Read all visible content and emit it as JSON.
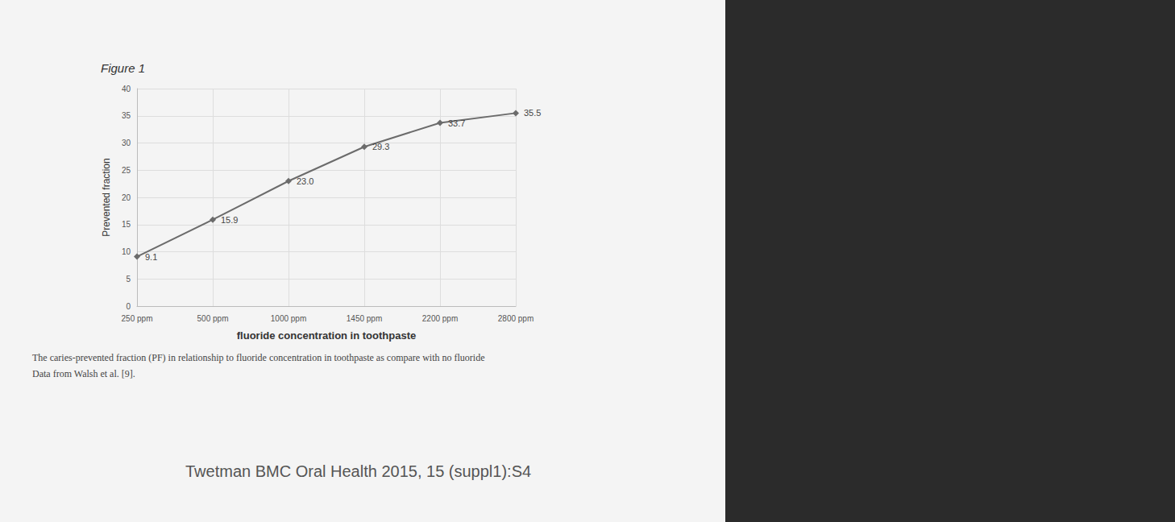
{
  "chart_data": {
    "type": "line",
    "title": "Figure 1",
    "x_label": "fluoride concentration in toothpaste",
    "y_label": "Prevented fraction",
    "categories": [
      "250 ppm",
      "500 ppm",
      "1000 ppm",
      "1450 ppm",
      "2200 ppm",
      "2800 ppm"
    ],
    "values": [
      9.1,
      15.9,
      23.0,
      29.3,
      33.7,
      35.5
    ],
    "value_labels": [
      "9.1",
      "15.9",
      "23.0",
      "29.3",
      "33.7",
      "35.5"
    ],
    "color": "#6b6b6b",
    "marker": "diamond",
    "line_style": "solid",
    "ylim": [
      0,
      40
    ],
    "yticks": [
      0,
      5,
      10,
      15,
      20,
      25,
      30,
      35,
      40
    ],
    "grid": true,
    "data_labels": true,
    "annotations": [
      "The caries-prevented fraction (PF) in relationship to fluoride concentration in toothpaste as compare with no fluoride",
      "Data from Walsh et al. [9].",
      "Twetman BMC Oral Health 2015, 15 (suppl1):S4"
    ]
  }
}
